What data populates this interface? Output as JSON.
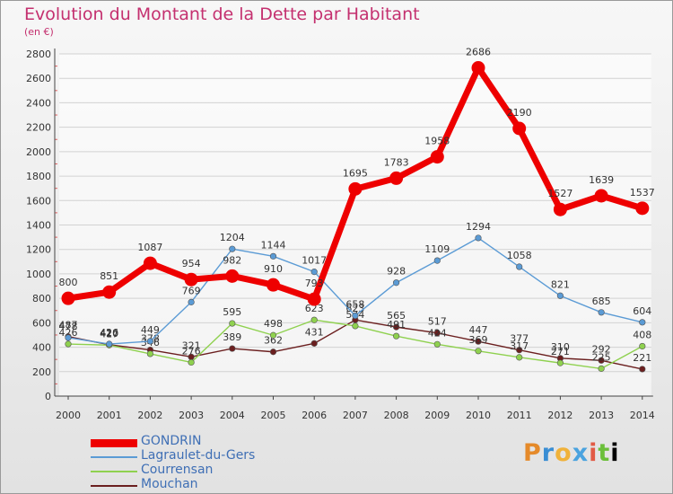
{
  "header": {
    "title": "Evolution du Montant de la Dette par Habitant",
    "unit": "(en €)"
  },
  "brand": {
    "text": "Proxiti"
  },
  "chart_data": {
    "type": "line",
    "title": "Evolution du Montant de la Dette par Habitant",
    "ylabel": "(en €)",
    "xlabel": "",
    "x": [
      "2000",
      "2001",
      "2002",
      "2003",
      "2004",
      "2005",
      "2006",
      "2007",
      "2008",
      "2009",
      "2010",
      "2011",
      "2012",
      "2013",
      "2014"
    ],
    "ylim": [
      0,
      2800
    ],
    "yticks": [
      0,
      200,
      400,
      600,
      800,
      1000,
      1200,
      1400,
      1600,
      1800,
      2000,
      2200,
      2400,
      2600,
      2800
    ],
    "grid": "horizontal",
    "legend_position": "bottom-left",
    "series": [
      {
        "name": "GONDRIN",
        "color": "#ee0000",
        "values": [
          800,
          851,
          1087,
          954,
          982,
          910,
          793,
          1695,
          1783,
          1958,
          2686,
          2190,
          1527,
          1639,
          1537
        ]
      },
      {
        "name": "Lagraulet-du-Gers",
        "color": "#5b9bd5",
        "values": [
          478,
          426,
          449,
          769,
          1204,
          1144,
          1017,
          658,
          928,
          1109,
          1294,
          1058,
          821,
          685,
          604
        ]
      },
      {
        "name": "Courrensan",
        "color": "#8fd14f",
        "values": [
          426,
          417,
          346,
          276,
          595,
          498,
          623,
          574,
          491,
          424,
          369,
          317,
          271,
          225,
          408
        ]
      },
      {
        "name": "Mouchan",
        "color": "#6b1f1f",
        "values": [
          487,
          420,
          378,
          321,
          389,
          362,
          431,
          623,
          565,
          517,
          447,
          377,
          310,
          292,
          221
        ]
      }
    ]
  }
}
